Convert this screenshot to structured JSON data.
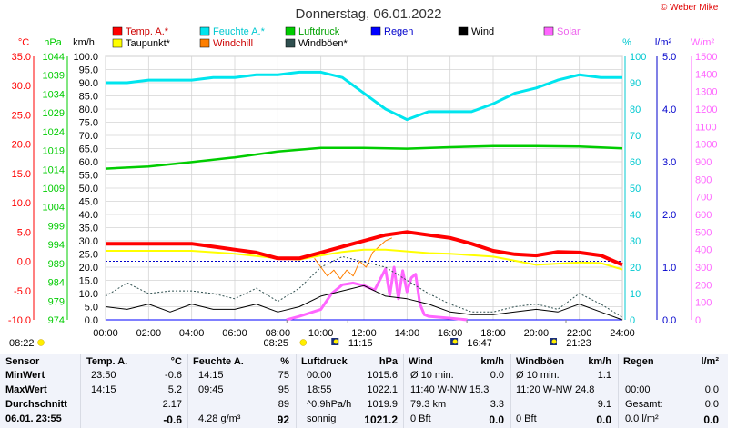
{
  "title": "Donnerstag, 06.01.2022",
  "copyright": "© Weber Mike",
  "colors": {
    "temp": "#ff0000",
    "dew": "#ffff00",
    "hum": "#00e5ee",
    "wchill": "#ff7f00",
    "press": "#00cc00",
    "gust": "#2f4f4f",
    "rain": "#0000ff",
    "wind": "#000000",
    "solar": "#ff66ff"
  },
  "units": {
    "temp": "°C",
    "press": "hPa",
    "wind": "km/h",
    "hum": "%",
    "rain": "l/m²",
    "solar": "W/m²"
  },
  "legend": [
    {
      "label": "Temp. A.*",
      "color": "#ff0000"
    },
    {
      "label": "Feuchte A.*",
      "color": "#00e5ee"
    },
    {
      "label": "Luftdruck",
      "color": "#00cc00"
    },
    {
      "label": "Regen",
      "color": "#0000ff"
    },
    {
      "label": "Wind",
      "color": "#000000"
    },
    {
      "label": "Solar",
      "color": "#ff66ff"
    },
    {
      "label": "Taupunkt*",
      "color": "#ffff00"
    },
    {
      "label": "Windchill",
      "color": "#ff7f00"
    },
    {
      "label": "Windböen*",
      "color": "#2f4f4f"
    }
  ],
  "axis_ticks": {
    "temp": [
      "35.0",
      "30.0",
      "25.0",
      "20.0",
      "15.0",
      "10.0",
      "5.0",
      "0.0",
      "-5.0",
      "-10.0"
    ],
    "press": [
      "1044",
      "1039",
      "1034",
      "1029",
      "1024",
      "1019",
      "1014",
      "1009",
      "1004",
      "999",
      "994",
      "989",
      "984",
      "979",
      "974"
    ],
    "wind": [
      "100.0",
      "95.0",
      "90.0",
      "85.0",
      "80.0",
      "75.0",
      "70.0",
      "65.0",
      "60.0",
      "55.0",
      "50.0",
      "45.0",
      "40.0",
      "35.0",
      "30.0",
      "25.0",
      "20.0",
      "15.0",
      "10.0",
      "5.0",
      "0.0"
    ],
    "hum": [
      "100",
      "90",
      "80",
      "70",
      "60",
      "50",
      "40",
      "30",
      "20",
      "10",
      "0"
    ],
    "rain": [
      "5.0",
      "4.0",
      "3.0",
      "2.0",
      "1.0",
      "0.0"
    ],
    "solar": [
      "1500",
      "1400",
      "1300",
      "1200",
      "1100",
      "1000",
      "900",
      "800",
      "700",
      "600",
      "500",
      "400",
      "300",
      "200",
      "100",
      "0"
    ],
    "time": [
      "00:00",
      "02:00",
      "04:00",
      "06:00",
      "08:00",
      "10:00",
      "12:00",
      "14:00",
      "16:00",
      "18:00",
      "20:00",
      "22:00",
      "24:00"
    ]
  },
  "events": [
    {
      "label": "08:22",
      "type": "moon",
      "hour": 8.37
    },
    {
      "label": "08:25",
      "type": "sun",
      "hour": 8.42
    },
    {
      "label": "11:15",
      "type": "moonrise",
      "hour": 11.25
    },
    {
      "label": "16:47",
      "type": "sunset",
      "hour": 16.78
    },
    {
      "label": "21:23",
      "type": "moonset",
      "hour": 21.38
    }
  ],
  "chart_data": {
    "type": "line",
    "x_label": "",
    "x_range": [
      0,
      24
    ],
    "temp_range": [
      -10,
      35
    ],
    "humidity_range": [
      0,
      100
    ],
    "series": [
      {
        "name": "Temp. A.*",
        "axis": "temp",
        "color": "#ff0000",
        "x": [
          0,
          1,
          2,
          3,
          4,
          5,
          6,
          7,
          8,
          9,
          10,
          11,
          12,
          13,
          14,
          15,
          16,
          17,
          18,
          19,
          20,
          21,
          22,
          23,
          24
        ],
        "y": [
          3.0,
          3.0,
          3.0,
          3.0,
          3.0,
          2.5,
          2.0,
          1.5,
          0.5,
          0.5,
          1.5,
          2.5,
          3.5,
          4.5,
          5.0,
          4.5,
          4.0,
          3.0,
          1.8,
          1.2,
          1.0,
          1.6,
          1.5,
          1.0,
          -0.6
        ]
      },
      {
        "name": "Taupunkt*",
        "axis": "temp",
        "color": "#ffff00",
        "x": [
          0,
          2,
          4,
          6,
          8,
          9,
          10,
          11,
          12,
          13,
          14,
          15,
          16,
          18,
          20,
          22,
          23,
          24
        ],
        "y": [
          1.8,
          1.8,
          1.8,
          1.3,
          0.5,
          0.3,
          1.0,
          1.6,
          2.0,
          2.0,
          1.7,
          1.4,
          1.3,
          0.8,
          -0.6,
          -0.2,
          -0.3,
          -1.4
        ]
      },
      {
        "name": "Feuchte A.*",
        "axis": "hum",
        "color": "#00e5ee",
        "x": [
          0,
          1,
          2,
          3,
          4,
          5,
          6,
          7,
          8,
          9,
          10,
          11,
          12,
          13,
          14,
          15,
          16,
          17,
          18,
          19,
          20,
          21,
          22,
          23,
          24
        ],
        "y": [
          90,
          90,
          91,
          91,
          91,
          92,
          92,
          93,
          93,
          94,
          94,
          92,
          86,
          80,
          76,
          79,
          79,
          79,
          82,
          86,
          88,
          91,
          93,
          92,
          92
        ]
      },
      {
        "name": "Luftdruck",
        "axis": "press",
        "color": "#00cc00",
        "x": [
          0,
          2,
          4,
          6,
          8,
          10,
          12,
          14,
          16,
          18,
          20,
          22,
          24
        ],
        "y": [
          1015.6,
          1016.2,
          1017.4,
          1018.7,
          1020.3,
          1021.3,
          1021.3,
          1021.1,
          1021.5,
          1021.8,
          1021.8,
          1021.7,
          1021.2
        ]
      },
      {
        "name": "Wind",
        "axis": "wind",
        "color": "#000000",
        "x": [
          0,
          1,
          2,
          3,
          4,
          5,
          6,
          7,
          8,
          9,
          10,
          11,
          12,
          13,
          14,
          15,
          16,
          17,
          18,
          19,
          20,
          21,
          22,
          23,
          24
        ],
        "y": [
          5,
          4,
          6,
          3,
          6,
          4,
          4,
          6,
          3,
          5,
          9,
          11,
          13,
          9,
          8,
          6,
          3,
          2,
          2,
          3,
          4,
          3,
          6,
          3,
          0
        ]
      },
      {
        "name": "Windböen*",
        "axis": "wind",
        "color": "#2f4f4f",
        "x": [
          0,
          1,
          2,
          3,
          4,
          5,
          6,
          7,
          8,
          9,
          10,
          11,
          12,
          13,
          14,
          15,
          16,
          17,
          18,
          19,
          20,
          21,
          22,
          23,
          24
        ],
        "y": [
          9,
          14,
          10,
          11,
          11,
          10,
          8,
          12,
          7,
          12,
          20,
          24,
          22,
          20,
          15,
          10,
          6,
          3,
          3,
          5,
          6,
          4,
          10,
          6,
          1
        ]
      },
      {
        "name": "Windchill",
        "axis": "temp",
        "color": "#ff7f00",
        "x": [
          9.7,
          10.0,
          10.3,
          10.6,
          10.9,
          11.2,
          11.5,
          11.8,
          12.1,
          12.4,
          12.7,
          13.0,
          13.3
        ],
        "y": [
          0.5,
          -1.0,
          -2.5,
          -1.5,
          -3.0,
          -1.5,
          -2.5,
          0.0,
          -1.0,
          1.5,
          2.5,
          3.5,
          4.0
        ]
      },
      {
        "name": "Solar",
        "axis": "solar",
        "color": "#ff66ff",
        "x": [
          8.4,
          9,
          10,
          10.5,
          11,
          11.5,
          12,
          12.5,
          13,
          13.2,
          13.4,
          13.6,
          13.8,
          14,
          14.2,
          14.4,
          14.6,
          14.8,
          15,
          16,
          16.8
        ],
        "y": [
          0,
          20,
          60,
          150,
          200,
          210,
          195,
          170,
          290,
          140,
          300,
          120,
          280,
          160,
          240,
          260,
          90,
          30,
          20,
          10,
          0
        ]
      },
      {
        "name": "Regen",
        "axis": "rain",
        "color": "#0000ff",
        "x": [
          0,
          24
        ],
        "y": [
          0,
          0
        ]
      }
    ]
  },
  "table": {
    "headers": [
      "Sensor",
      "Temp. A.",
      "°C",
      "Feuchte A.",
      "%",
      "Luftdruck",
      "hPa",
      "Wind",
      "km/h",
      "Windböen",
      "km/h",
      "Regen",
      "l/m²"
    ],
    "rows": [
      {
        "label": "MinWert",
        "temp_time": "23:50",
        "temp": "-0.6",
        "hum_time": "14:15",
        "hum": "75",
        "press_time": "00:00",
        "press": "1015.6",
        "wind_desc": "Ø 10 min.",
        "wind": "0.0",
        "gust_desc": "Ø 10 min.",
        "gust": "1.1",
        "rain_desc": "",
        "rain": ""
      },
      {
        "label": "MaxWert",
        "temp_time": "14:15",
        "temp": "5.2",
        "hum_time": "09:45",
        "hum": "95",
        "press_time": "18:55",
        "press": "1022.1",
        "wind_desc": "11:40   W-NW 15.3",
        "wind": "",
        "gust_desc": "11:20   W-NW 24.8",
        "gust": "",
        "rain_desc": "00:00",
        "rain": "0.0"
      },
      {
        "label": "Durchschnitt",
        "temp_time": "",
        "temp": "2.17",
        "hum_time": "",
        "hum": "89",
        "press_time": "^0.9hPa/h",
        "press": "1019.9",
        "wind_desc": "79.3 km",
        "wind": "3.3",
        "gust_desc": "",
        "gust": "9.1",
        "rain_desc": "Gesamt:",
        "rain": "0.0"
      },
      {
        "label": "06.01.  23:55",
        "temp_time": "",
        "temp": "-0.6",
        "hum_time": "4.28 g/m³",
        "hum": "92",
        "press_time": "sonnig",
        "press": "1021.2",
        "wind_desc": "0 Bft",
        "wind": "0.0",
        "gust_desc": "0 Bft",
        "gust": "0.0",
        "rain_desc": "0.0 l/m²",
        "rain": "0.0"
      }
    ]
  }
}
